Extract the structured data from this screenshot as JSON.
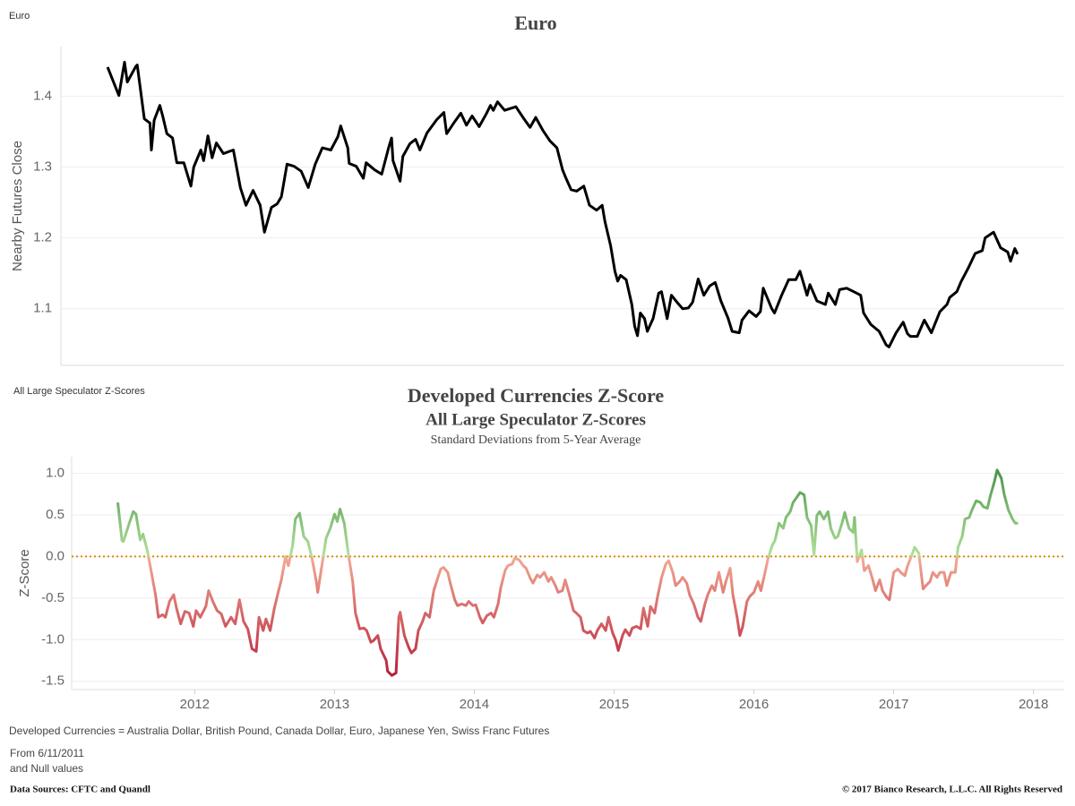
{
  "chart_data": [
    {
      "type": "line",
      "sheet_label": "Euro",
      "title": "Euro",
      "y_label": "Nearby Futures Close",
      "color": "#000000",
      "xlim": [
        2011.12,
        2018.22
      ],
      "ylim": [
        1.02,
        1.47
      ],
      "yticks": [
        1.1,
        1.2,
        1.3,
        1.4
      ],
      "grid": true,
      "x": [
        2011.45,
        2011.53,
        2011.57,
        2011.59,
        2011.65,
        2011.66,
        2011.71,
        2011.75,
        2011.76,
        2011.78,
        2011.82,
        2011.84,
        2011.87,
        2011.91,
        2011.94,
        2011.99,
        2012.04,
        2012.06,
        2012.11,
        2012.13,
        2012.16,
        2012.19,
        2012.22,
        2012.27,
        2012.34,
        2012.39,
        2012.43,
        2012.48,
        2012.53,
        2012.56,
        2012.61,
        2012.65,
        2012.68,
        2012.72,
        2012.77,
        2012.82,
        2012.87,
        2012.92,
        2012.97,
        2013.03,
        2013.08,
        2013.1,
        2013.15,
        2013.16,
        2013.21,
        2013.26,
        2013.28,
        2013.34,
        2013.39,
        2013.44,
        2013.46,
        2013.47,
        2013.52,
        2013.54,
        2013.59,
        2013.63,
        2013.66,
        2013.71,
        2013.78,
        2013.83,
        2013.85,
        2013.9,
        2013.95,
        2013.99,
        2014.03,
        2014.08,
        2014.13,
        2014.16,
        2014.18,
        2014.21,
        2014.26,
        2014.34,
        2014.39,
        2014.44,
        2014.48,
        2014.53,
        2014.58,
        2014.63,
        2014.67,
        2014.69,
        2014.73,
        2014.77,
        2014.82,
        2014.86,
        2014.91,
        2014.95,
        2014.97,
        2015.01,
        2015.04,
        2015.06,
        2015.08,
        2015.12,
        2015.16,
        2015.18,
        2015.2,
        2015.22,
        2015.25,
        2015.27,
        2015.31,
        2015.35,
        2015.37,
        2015.41,
        2015.44,
        2015.48,
        2015.52,
        2015.56,
        2015.59,
        2015.63,
        2015.67,
        2015.71,
        2015.75,
        2015.79,
        2015.84,
        2015.87,
        2015.92,
        2015.94,
        2015.99,
        2016.04,
        2016.07,
        2016.09,
        2016.15,
        2016.17,
        2016.22,
        2016.27,
        2016.32,
        2016.35,
        2016.4,
        2016.42,
        2016.47,
        2016.53,
        2016.55,
        2016.6,
        2016.63,
        2016.68,
        2016.73,
        2016.78,
        2016.8,
        2016.85,
        2016.91,
        2016.96,
        2016.98,
        2017.03,
        2017.08,
        2017.11,
        2017.13,
        2017.18,
        2017.23,
        2017.28,
        2017.34,
        2017.39,
        2017.41,
        2017.46,
        2017.49,
        2017.54,
        2017.59,
        2017.64,
        2017.66,
        2017.72,
        2017.77,
        2017.82,
        2017.84,
        2017.87,
        2017.89
      ],
      "values": [
        1.441,
        1.401,
        1.448,
        1.42,
        1.442,
        1.444,
        1.368,
        1.362,
        1.324,
        1.366,
        1.387,
        1.372,
        1.347,
        1.341,
        1.306,
        1.306,
        1.273,
        1.3,
        1.324,
        1.309,
        1.344,
        1.313,
        1.334,
        1.319,
        1.324,
        1.271,
        1.246,
        1.267,
        1.246,
        1.208,
        1.243,
        1.248,
        1.258,
        1.304,
        1.301,
        1.294,
        1.271,
        1.304,
        1.327,
        1.324,
        1.343,
        1.358,
        1.327,
        1.305,
        1.301,
        1.284,
        1.306,
        1.296,
        1.29,
        1.328,
        1.341,
        1.309,
        1.28,
        1.315,
        1.333,
        1.339,
        1.324,
        1.348,
        1.367,
        1.377,
        1.347,
        1.362,
        1.376,
        1.359,
        1.372,
        1.357,
        1.375,
        1.387,
        1.38,
        1.392,
        1.38,
        1.385,
        1.37,
        1.356,
        1.37,
        1.352,
        1.337,
        1.327,
        1.296,
        1.286,
        1.268,
        1.266,
        1.273,
        1.246,
        1.239,
        1.246,
        1.223,
        1.189,
        1.153,
        1.139,
        1.147,
        1.141,
        1.106,
        1.075,
        1.062,
        1.094,
        1.086,
        1.068,
        1.086,
        1.122,
        1.124,
        1.086,
        1.119,
        1.109,
        1.1,
        1.101,
        1.109,
        1.142,
        1.119,
        1.132,
        1.137,
        1.111,
        1.087,
        1.068,
        1.066,
        1.084,
        1.097,
        1.089,
        1.096,
        1.129,
        1.1,
        1.094,
        1.119,
        1.141,
        1.141,
        1.153,
        1.119,
        1.134,
        1.111,
        1.106,
        1.122,
        1.106,
        1.127,
        1.129,
        1.124,
        1.119,
        1.094,
        1.078,
        1.068,
        1.049,
        1.046,
        1.066,
        1.081,
        1.065,
        1.061,
        1.061,
        1.084,
        1.066,
        1.096,
        1.106,
        1.116,
        1.124,
        1.138,
        1.157,
        1.178,
        1.182,
        1.2,
        1.208,
        1.186,
        1.18,
        1.167,
        1.185,
        1.177
      ]
    },
    {
      "type": "line",
      "sheet_label": "All Large Speculator Z-Scores",
      "title": "Developed Currencies Z-Score",
      "subtitle": "All Large Speculator Z-Scores",
      "subtitle2": "Standard Deviations from 5-Year Average",
      "y_label": "Z-Score",
      "colors": {
        "high": "#3a8a3e",
        "near_zero_high": "#b2e09a",
        "near_zero_low": "#f3a993",
        "low": "#b01030"
      },
      "reference_line": {
        "value": 0,
        "color": "#e08a00"
      },
      "xlim": [
        2011.12,
        2018.22
      ],
      "ylim": [
        -1.6,
        1.2
      ],
      "xticks": [
        2012,
        2013,
        2014,
        2015,
        2016,
        2017,
        2018
      ],
      "yticks": [
        {
          "value": 1,
          "label": "1.0"
        },
        0.5,
        {
          "value": 0,
          "label": "0.0"
        },
        -0.5,
        {
          "value": -1,
          "label": "-1.0"
        },
        -1.5
      ],
      "grid": true,
      "x": [
        2011.45,
        2011.48,
        2011.49,
        2011.53,
        2011.56,
        2011.58,
        2011.61,
        2011.63,
        2011.66,
        2011.69,
        2011.72,
        2011.74,
        2011.77,
        2011.79,
        2011.82,
        2011.85,
        2011.87,
        2011.9,
        2011.93,
        2011.96,
        2011.99,
        2012.01,
        2012.04,
        2012.08,
        2012.1,
        2012.13,
        2012.16,
        2012.19,
        2012.22,
        2012.26,
        2012.29,
        2012.32,
        2012.35,
        2012.38,
        2012.41,
        2012.44,
        2012.46,
        2012.49,
        2012.51,
        2012.54,
        2012.57,
        2012.6,
        2012.62,
        2012.65,
        2012.67,
        2012.7,
        2012.72,
        2012.75,
        2012.78,
        2012.81,
        2012.84,
        2012.87,
        2012.88,
        2012.91,
        2012.94,
        2012.97,
        2013.0,
        2013.02,
        2013.04,
        2013.07,
        2013.1,
        2013.13,
        2013.15,
        2013.18,
        2013.21,
        2013.23,
        2013.26,
        2013.28,
        2013.31,
        2013.33,
        2013.37,
        2013.38,
        2013.41,
        2013.44,
        2013.46,
        2013.47,
        2013.5,
        2013.53,
        2013.55,
        2013.58,
        2013.6,
        2013.63,
        2013.65,
        2013.68,
        2013.71,
        2013.74,
        2013.76,
        2013.78,
        2013.81,
        2013.83,
        2013.86,
        2013.88,
        2013.91,
        2013.94,
        2013.96,
        2013.99,
        2014.01,
        2014.04,
        2014.06,
        2014.09,
        2014.12,
        2014.14,
        2014.17,
        2014.19,
        2014.22,
        2014.24,
        2014.27,
        2014.29,
        2014.32,
        2014.35,
        2014.37,
        2014.4,
        2014.42,
        2014.45,
        2014.47,
        2014.5,
        2014.53,
        2014.55,
        2014.58,
        2014.6,
        2014.63,
        2014.65,
        2014.68,
        2014.71,
        2014.73,
        2014.76,
        2014.78,
        2014.81,
        2014.83,
        2014.86,
        2014.88,
        2014.91,
        2014.94,
        2014.96,
        2014.99,
        2015.01,
        2015.03,
        2015.06,
        2015.08,
        2015.11,
        2015.13,
        2015.16,
        2015.19,
        2015.21,
        2015.24,
        2015.26,
        2015.29,
        2015.31,
        2015.34,
        2015.37,
        2015.39,
        2015.42,
        2015.44,
        2015.47,
        2015.49,
        2015.52,
        2015.54,
        2015.57,
        2015.6,
        2015.62,
        2015.65,
        2015.67,
        2015.7,
        2015.72,
        2015.75,
        2015.78,
        2015.8,
        2015.83,
        2015.85,
        2015.88,
        2015.9,
        2015.92,
        2015.95,
        2015.97,
        2016.0,
        2016.03,
        2016.05,
        2016.08,
        2016.1,
        2016.13,
        2016.15,
        2016.18,
        2016.21,
        2016.23,
        2016.26,
        2016.28,
        2016.31,
        2016.33,
        2016.36,
        2016.38,
        2016.41,
        2016.43,
        2016.45,
        2016.47,
        2016.5,
        2016.53,
        2016.55,
        2016.58,
        2016.6,
        2016.63,
        2016.65,
        2016.68,
        2016.71,
        2016.72,
        2016.74,
        2016.77,
        2016.79,
        2016.82,
        2016.85,
        2016.87,
        2016.9,
        2016.92,
        2016.95,
        2016.97,
        2017.0,
        2017.03,
        2017.05,
        2017.08,
        2017.1,
        2017.13,
        2017.15,
        2017.18,
        2017.21,
        2017.23,
        2017.26,
        2017.28,
        2017.31,
        2017.33,
        2017.36,
        2017.38,
        2017.41,
        2017.44,
        2017.46,
        2017.49,
        2017.51,
        2017.54,
        2017.56,
        2017.59,
        2017.62,
        2017.64,
        2017.67,
        2017.69,
        2017.72,
        2017.74,
        2017.77,
        2017.79,
        2017.82,
        2017.85,
        2017.87,
        2017.89
      ],
      "values": [
        0.65,
        0.19,
        0.18,
        0.39,
        0.54,
        0.51,
        0.2,
        0.27,
        0.08,
        -0.19,
        -0.46,
        -0.73,
        -0.7,
        -0.73,
        -0.54,
        -0.46,
        -0.62,
        -0.81,
        -0.66,
        -0.68,
        -0.84,
        -0.65,
        -0.73,
        -0.6,
        -0.41,
        -0.54,
        -0.65,
        -0.69,
        -0.84,
        -0.73,
        -0.81,
        -0.52,
        -0.78,
        -0.87,
        -1.11,
        -1.14,
        -0.73,
        -0.89,
        -0.75,
        -0.89,
        -0.62,
        -0.41,
        -0.28,
        0.0,
        -0.11,
        0.13,
        0.45,
        0.52,
        0.24,
        0.18,
        -0.03,
        -0.3,
        -0.43,
        -0.11,
        0.22,
        0.34,
        0.51,
        0.42,
        0.57,
        0.4,
        0.02,
        -0.3,
        -0.68,
        -0.87,
        -0.86,
        -0.89,
        -1.03,
        -1.01,
        -0.95,
        -1.11,
        -1.25,
        -1.38,
        -1.43,
        -1.4,
        -0.73,
        -0.67,
        -0.95,
        -1.09,
        -1.16,
        -1.11,
        -0.89,
        -0.78,
        -0.68,
        -0.73,
        -0.41,
        -0.25,
        -0.15,
        -0.13,
        -0.19,
        -0.33,
        -0.52,
        -0.59,
        -0.57,
        -0.59,
        -0.54,
        -0.59,
        -0.58,
        -0.73,
        -0.8,
        -0.71,
        -0.68,
        -0.73,
        -0.57,
        -0.37,
        -0.17,
        -0.11,
        -0.09,
        -0.02,
        -0.04,
        -0.11,
        -0.14,
        -0.26,
        -0.32,
        -0.22,
        -0.25,
        -0.19,
        -0.3,
        -0.25,
        -0.35,
        -0.43,
        -0.41,
        -0.28,
        -0.46,
        -0.65,
        -0.68,
        -0.73,
        -0.89,
        -0.92,
        -0.9,
        -0.98,
        -0.89,
        -0.81,
        -0.89,
        -0.73,
        -0.92,
        -1.0,
        -1.13,
        -0.95,
        -0.88,
        -0.95,
        -0.86,
        -0.84,
        -0.87,
        -0.62,
        -0.84,
        -0.6,
        -0.68,
        -0.49,
        -0.25,
        -0.09,
        -0.05,
        -0.19,
        -0.35,
        -0.3,
        -0.25,
        -0.32,
        -0.46,
        -0.57,
        -0.73,
        -0.78,
        -0.57,
        -0.46,
        -0.35,
        -0.41,
        -0.19,
        -0.43,
        -0.3,
        -0.14,
        -0.46,
        -0.73,
        -0.95,
        -0.84,
        -0.54,
        -0.48,
        -0.43,
        -0.3,
        -0.41,
        -0.19,
        -0.03,
        0.13,
        0.19,
        0.4,
        0.34,
        0.47,
        0.54,
        0.65,
        0.72,
        0.77,
        0.74,
        0.47,
        0.37,
        0.02,
        0.49,
        0.54,
        0.45,
        0.54,
        0.34,
        0.22,
        0.24,
        0.4,
        0.53,
        0.34,
        0.29,
        0.47,
        -0.06,
        0.08,
        -0.17,
        -0.11,
        -0.28,
        -0.41,
        -0.28,
        -0.41,
        -0.49,
        -0.52,
        -0.19,
        -0.15,
        -0.19,
        -0.23,
        -0.11,
        0.02,
        0.11,
        0.04,
        -0.39,
        -0.35,
        -0.3,
        -0.19,
        -0.25,
        -0.19,
        -0.19,
        -0.35,
        -0.19,
        -0.19,
        0.11,
        0.24,
        0.45,
        0.47,
        0.56,
        0.67,
        0.65,
        0.6,
        0.58,
        0.72,
        0.9,
        1.04,
        0.94,
        0.75,
        0.56,
        0.45,
        0.4,
        0.4
      ]
    }
  ],
  "footer": {
    "note": "Developed Currencies = Australia Dollar, British Pound, Canada Dollar, Euro, Japanese Yen, Swiss Franc Futures",
    "filter1": "From 6/11/2011",
    "filter2": "and Null values",
    "sources": "Data Sources: CFTC and Quandl",
    "copyright": "© 2017 Bianco Research, L.L.C. All Rights Reserved"
  }
}
